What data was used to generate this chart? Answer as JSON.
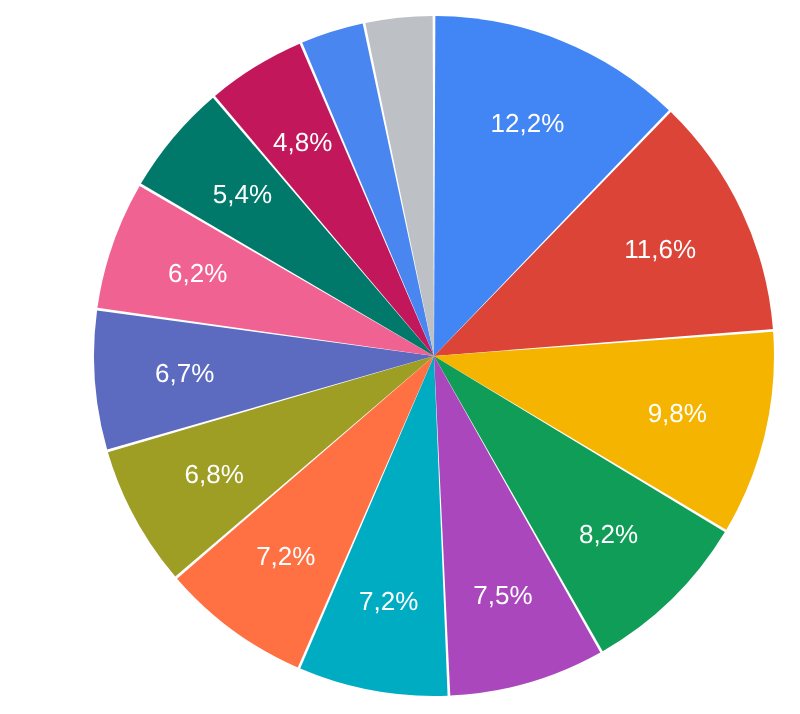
{
  "chart_data": {
    "type": "pie",
    "categories": [
      null,
      null,
      null,
      null,
      null,
      null,
      null,
      null,
      null,
      null,
      null,
      null,
      null,
      null
    ],
    "values": [
      12.2,
      11.6,
      9.8,
      8.2,
      7.5,
      7.2,
      7.2,
      6.8,
      6.7,
      6.2,
      5.4,
      4.8,
      3.1,
      3.3
    ],
    "value_labels": [
      "12,2%",
      "11,6%",
      "9,8%",
      "8,2%",
      "7,5%",
      "7,2%",
      "7,2%",
      "6,8%",
      "6,7%",
      "6,2%",
      "5,4%",
      "4,8%",
      null,
      null
    ],
    "colors": [
      "#4285f4",
      "#db4437",
      "#f4b400",
      "#0f9d58",
      "#ab47bc",
      "#00acc1",
      "#ff7043",
      "#9e9d24",
      "#5c6bc0",
      "#f06292",
      "#00796b",
      "#c2185b",
      "#4a86f0",
      "#bdc1c6"
    ]
  }
}
